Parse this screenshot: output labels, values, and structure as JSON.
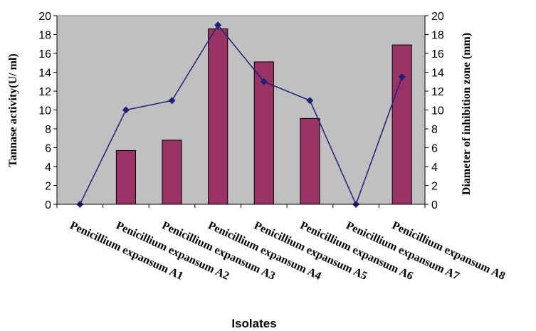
{
  "chart_data": {
    "type": "bar",
    "categories": [
      "Penicillium expansum A1",
      "Penicillium expansum A2",
      "Penicillium expansum A3",
      "Penicillium expansum A4",
      "Penicillium expansum A5",
      "Penicillium expansum A6",
      "Penicillium expansum A7",
      "Penicillium expansum A8"
    ],
    "series": [
      {
        "type": "bar",
        "axis": "left",
        "values": [
          0,
          5.7,
          6.8,
          18.6,
          15.1,
          9.1,
          0,
          16.9
        ],
        "color": "#993366"
      },
      {
        "type": "line",
        "axis": "right",
        "values": [
          0,
          10,
          11,
          19,
          13,
          11,
          0,
          13.5
        ],
        "color": "#1f1f7a"
      }
    ],
    "xlabel": "Isolates",
    "ylabel": "Tannase activity(U/ ml)",
    "y2label": "Diameter of inhibition zone (mm)",
    "ylim": [
      0,
      20
    ],
    "y2lim": [
      0,
      20
    ],
    "yticks": [
      0,
      2,
      4,
      6,
      8,
      10,
      12,
      14,
      16,
      18,
      20
    ],
    "grid": false,
    "plot_background": "#c0c0c0",
    "legend": "none"
  }
}
